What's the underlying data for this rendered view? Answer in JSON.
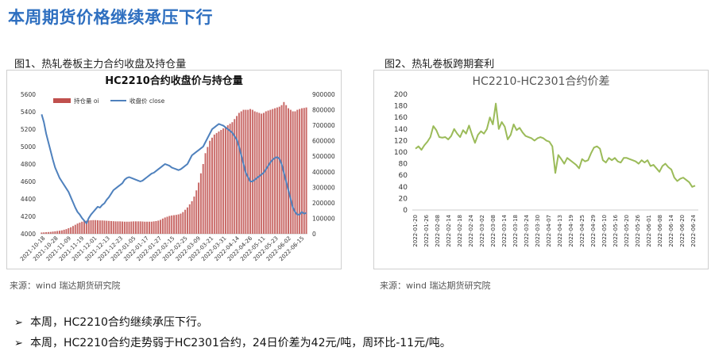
{
  "page": {
    "title": "本周期货价格继续承压下行",
    "fig1_label": "图1、热轧卷板主力合约收盘及持仓量",
    "fig2_label": "图2、热轧卷板跨期套利",
    "source1": "来源：wind  瑞达期货研究院",
    "source2": "来源：wind  瑞达期货研究院",
    "bullets": [
      {
        "arrow": "➢",
        "text": "本周，HC2210合约继续承压下行。"
      },
      {
        "arrow": "➢",
        "text": "本周，HC2210合约走势弱于HC2301合约，24日价差为42元/吨，周环比-11元/吨。"
      }
    ]
  },
  "chart_data": [
    {
      "type": "bar+line",
      "title": "HC2210合约收盘价与持仓量",
      "legend": [
        "持仓量 oi",
        "收盘价 close"
      ],
      "legend_position": "top",
      "colors": {
        "bar": "#c0504d",
        "line": "#4f81bd"
      },
      "left_axis": {
        "series": "收盘价 close",
        "ylim": [
          4000,
          5600
        ],
        "ticks": [
          4000,
          4200,
          4400,
          4600,
          4800,
          5000,
          5200,
          5400,
          5600
        ]
      },
      "right_axis": {
        "series": "持仓量 oi",
        "ylim": [
          0,
          900000
        ],
        "ticks": [
          0,
          100000,
          200000,
          300000,
          400000,
          500000,
          600000,
          700000,
          800000,
          900000
        ]
      },
      "x_tick_labels": [
        "2021-10-18",
        "2021-10-28",
        "2021-11-09",
        "2021-11-19",
        "2021-12-01",
        "2021-12-13",
        "2021-12-23",
        "2022-01-05",
        "2022-01-17",
        "2022-01-27",
        "2022-02-15",
        "2022-02-25",
        "2022-03-09",
        "2022-03-21",
        "2022-03-31",
        "2022-04-14",
        "2022-04-26",
        "2022-05-11",
        "2022-05-23",
        "2022-06-02",
        "2022-06-15"
      ],
      "series": [
        {
          "name": "收盘价 close",
          "values": [
            5370,
            5280,
            5150,
            5050,
            4950,
            4850,
            4760,
            4700,
            4640,
            4600,
            4560,
            4520,
            4480,
            4420,
            4360,
            4300,
            4250,
            4220,
            4180,
            4150,
            4120,
            4180,
            4220,
            4250,
            4280,
            4310,
            4300,
            4330,
            4350,
            4390,
            4420,
            4460,
            4500,
            4520,
            4540,
            4560,
            4580,
            4620,
            4640,
            4650,
            4640,
            4630,
            4620,
            4610,
            4600,
            4610,
            4630,
            4650,
            4670,
            4690,
            4700,
            4720,
            4740,
            4760,
            4780,
            4800,
            4790,
            4780,
            4760,
            4750,
            4740,
            4730,
            4740,
            4760,
            4780,
            4800,
            4850,
            4900,
            4920,
            4940,
            4960,
            4980,
            5000,
            5050,
            5100,
            5150,
            5200,
            5220,
            5240,
            5260,
            5250,
            5240,
            5220,
            5200,
            5180,
            5160,
            5120,
            5080,
            5000,
            4900,
            4800,
            4700,
            4650,
            4600,
            4600,
            4620,
            4640,
            4660,
            4680,
            4700,
            4740,
            4780,
            4820,
            4850,
            4870,
            4880,
            4860,
            4800,
            4700,
            4600,
            4500,
            4400,
            4300,
            4250,
            4220,
            4220,
            4250,
            4230,
            4240
          ]
        },
        {
          "name": "持仓量 oi",
          "values": [
            8000,
            9000,
            10000,
            11000,
            12000,
            14000,
            16000,
            18000,
            20000,
            22000,
            26000,
            30000,
            36000,
            42000,
            50000,
            58000,
            66000,
            72000,
            78000,
            82000,
            84000,
            86000,
            87000,
            88000,
            88000,
            87000,
            86000,
            86000,
            85000,
            84000,
            83000,
            82000,
            81000,
            80000,
            80000,
            80000,
            79000,
            78000,
            78000,
            78000,
            79000,
            80000,
            80000,
            80000,
            80000,
            79000,
            78000,
            78000,
            78000,
            78000,
            80000,
            82000,
            85000,
            90000,
            98000,
            105000,
            110000,
            115000,
            118000,
            120000,
            122000,
            125000,
            130000,
            140000,
            155000,
            170000,
            190000,
            210000,
            240000,
            280000,
            330000,
            390000,
            450000,
            520000,
            560000,
            600000,
            620000,
            640000,
            650000,
            660000,
            670000,
            680000,
            690000,
            700000,
            710000,
            720000,
            740000,
            760000,
            780000,
            790000,
            800000,
            800000,
            800000,
            805000,
            800000,
            790000,
            785000,
            780000,
            775000,
            780000,
            790000,
            795000,
            800000,
            805000,
            810000,
            815000,
            820000,
            830000,
            850000,
            830000,
            810000,
            800000,
            790000,
            790000,
            800000,
            805000,
            810000,
            812000,
            815000
          ]
        }
      ]
    },
    {
      "type": "line",
      "title": "HC2210-HC2301合约价差",
      "color": "#9bbb59",
      "ylim": [
        0,
        200
      ],
      "y_ticks": [
        0,
        20,
        40,
        60,
        80,
        100,
        120,
        140,
        160,
        180,
        200
      ],
      "x_tick_labels": [
        "2022-01-20",
        "2022-01-26",
        "2022-02-08",
        "2022-02-14",
        "2022-02-18",
        "2022-02-24",
        "2022-03-02",
        "2022-03-08",
        "2022-03-14",
        "2022-03-18",
        "2022-03-24",
        "2022-03-30",
        "2022-04-07",
        "2022-04-13",
        "2022-04-19",
        "2022-04-25",
        "2022-04-29",
        "2022-05-10",
        "2022-05-16",
        "2022-05-20",
        "2022-05-26",
        "2022-06-01",
        "2022-06-08",
        "2022-06-14",
        "2022-06-20",
        "2022-06-24"
      ],
      "series": [
        {
          "name": "价差",
          "values": [
            106,
            110,
            104,
            112,
            118,
            126,
            145,
            138,
            126,
            125,
            126,
            122,
            128,
            140,
            132,
            126,
            138,
            132,
            146,
            130,
            116,
            130,
            136,
            132,
            140,
            160,
            148,
            184,
            140,
            152,
            144,
            122,
            130,
            148,
            138,
            142,
            134,
            128,
            126,
            124,
            120,
            124,
            126,
            124,
            120,
            118,
            110,
            64,
            95,
            88,
            80,
            90,
            86,
            82,
            78,
            72,
            88,
            84,
            86,
            98,
            108,
            110,
            106,
            86,
            82,
            90,
            86,
            90,
            84,
            82,
            90,
            90,
            88,
            86,
            84,
            80,
            86,
            82,
            86,
            76,
            78,
            72,
            66,
            76,
            80,
            74,
            70,
            56,
            50,
            54,
            56,
            52,
            48,
            40,
            42
          ]
        }
      ]
    }
  ]
}
